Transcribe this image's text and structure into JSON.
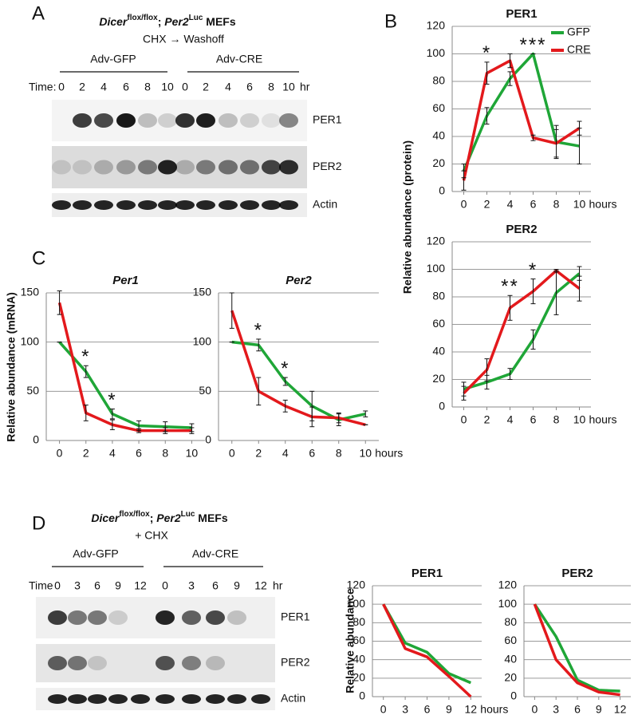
{
  "panels": [
    "A",
    "B",
    "C",
    "D"
  ],
  "panel_a": {
    "title": [
      "Dicer",
      "flox/flox",
      "; ",
      "Per2",
      "Luc",
      " MEFs"
    ],
    "treatment": "CHX → Washoff",
    "groups": [
      "Adv-GFP",
      "Adv-CRE"
    ],
    "time_label": "Time:",
    "times": [
      [
        0,
        2,
        4,
        6,
        8,
        10
      ],
      [
        0,
        2,
        4,
        6,
        8,
        10
      ]
    ],
    "time_unit": "hr",
    "blots": [
      "PER1",
      "PER2",
      "Actin"
    ]
  },
  "panel_d": {
    "title": [
      "Dicer",
      "flox/flox",
      "; ",
      "Per2",
      "Luc",
      " MEFs"
    ],
    "treatment": "+ CHX",
    "groups": [
      "Adv-GFP",
      "Adv-CRE"
    ],
    "time_label": "Time",
    "times": [
      [
        0,
        3,
        6,
        9,
        12
      ],
      [
        0,
        3,
        6,
        9,
        12
      ]
    ],
    "time_unit": "hr",
    "blots": [
      "PER1",
      "PER2",
      "Actin"
    ]
  },
  "chart_data": [
    {
      "type": "line",
      "title": "PER1",
      "ylabel": "Relative abundance (protein)",
      "xlabel": "hours",
      "x": [
        0,
        2,
        4,
        6,
        8,
        10
      ],
      "xlim": [
        -1,
        11
      ],
      "xticks": [
        0,
        2,
        4,
        6,
        8,
        10
      ],
      "ylim": [
        0,
        120
      ],
      "yticks": [
        0,
        20,
        40,
        60,
        80,
        100,
        120
      ],
      "grid": true,
      "legend": "upper right",
      "series": [
        {
          "name": "GFP",
          "color": "#1fa637",
          "values": [
            15,
            55,
            82,
            100,
            36,
            33
          ],
          "errors": [
            5,
            6,
            5,
            0,
            12,
            13
          ]
        },
        {
          "name": "CRE",
          "color": "#e3191c",
          "values": [
            8,
            86,
            95,
            39,
            35,
            46
          ],
          "errors": [
            7,
            8,
            5,
            2,
            10,
            5
          ]
        }
      ],
      "annotations": [
        {
          "text": "*",
          "x": 2
        },
        {
          "text": "***",
          "x": 6
        }
      ]
    },
    {
      "type": "line",
      "title": "PER2",
      "xlabel": "hours",
      "x": [
        0,
        2,
        4,
        6,
        8,
        10
      ],
      "xlim": [
        -1,
        11
      ],
      "xticks": [
        0,
        2,
        4,
        6,
        8,
        10
      ],
      "ylim": [
        0,
        120
      ],
      "yticks": [
        0,
        20,
        40,
        60,
        80,
        100,
        120
      ],
      "grid": true,
      "series": [
        {
          "color": "#1fa637",
          "values": [
            13,
            18,
            24,
            49,
            83,
            97
          ],
          "errors": [
            5,
            5,
            4,
            7,
            16,
            5
          ]
        },
        {
          "color": "#e3191c",
          "values": [
            10,
            27,
            72,
            84,
            99,
            86
          ],
          "errors": [
            5,
            8,
            9,
            9,
            1,
            9
          ]
        }
      ],
      "annotations": [
        {
          "text": "**",
          "x": 4
        },
        {
          "text": "*",
          "x": 6
        }
      ]
    },
    {
      "type": "line",
      "title": "Per1",
      "ylabel": "Relative abundance (mRNA)",
      "x": [
        0,
        2,
        4,
        6,
        8,
        10
      ],
      "xlim": [
        -1,
        11
      ],
      "xticks": [
        0,
        2,
        4,
        6,
        8,
        10
      ],
      "ylim": [
        0,
        150
      ],
      "yticks": [
        0,
        50,
        100,
        150
      ],
      "grid": true,
      "series": [
        {
          "color": "#1fa637",
          "values": [
            100,
            70,
            27,
            15,
            14,
            13
          ],
          "errors": [
            0,
            6,
            5,
            5,
            5,
            4
          ]
        },
        {
          "color": "#e3191c",
          "values": [
            140,
            28,
            16,
            10,
            10,
            10
          ],
          "errors": [
            12,
            8,
            5,
            2,
            3,
            3
          ]
        }
      ],
      "annotations": [
        {
          "text": "*",
          "x": 2
        },
        {
          "text": "*",
          "x": 4
        }
      ]
    },
    {
      "type": "line",
      "title": "Per2",
      "xlabel": "hours",
      "x": [
        0,
        2,
        4,
        6,
        8,
        10
      ],
      "xlim": [
        -1,
        11
      ],
      "xticks": [
        0,
        2,
        4,
        6,
        8,
        10
      ],
      "ylim": [
        0,
        150
      ],
      "yticks": [
        0,
        50,
        100,
        150
      ],
      "grid": true,
      "series": [
        {
          "color": "#1fa637",
          "values": [
            100,
            97,
            60,
            35,
            21,
            27
          ],
          "errors": [
            0,
            6,
            4,
            15,
            6,
            3
          ]
        },
        {
          "color": "#e3191c",
          "values": [
            132,
            50,
            35,
            24,
            23,
            16
          ],
          "errors": [
            18,
            14,
            6,
            10,
            5,
            0
          ]
        }
      ],
      "annotations": [
        {
          "text": "*",
          "x": 2
        },
        {
          "text": "*",
          "x": 4
        }
      ]
    },
    {
      "type": "line",
      "title": "PER1",
      "ylabel": "Relative abundance",
      "xlabel": "hours",
      "x": [
        0,
        3,
        6,
        9,
        12
      ],
      "xlim": [
        -1.5,
        13.5
      ],
      "xticks": [
        0,
        3,
        6,
        9,
        12
      ],
      "ylim": [
        0,
        120
      ],
      "yticks": [
        0,
        20,
        40,
        60,
        80,
        100,
        120
      ],
      "grid": true,
      "series": [
        {
          "color": "#1fa637",
          "values": [
            100,
            58,
            48,
            25,
            15
          ]
        },
        {
          "color": "#e3191c",
          "values": [
            100,
            52,
            43,
            22,
            0
          ]
        }
      ]
    },
    {
      "type": "line",
      "title": "PER2",
      "x": [
        0,
        3,
        6,
        9,
        12
      ],
      "xlim": [
        -1.5,
        13.5
      ],
      "xticks": [
        0,
        3,
        6,
        9,
        12
      ],
      "ylim": [
        0,
        120
      ],
      "yticks": [
        0,
        20,
        40,
        60,
        80,
        100,
        120
      ],
      "grid": true,
      "series": [
        {
          "color": "#1fa637",
          "values": [
            100,
            65,
            18,
            7,
            6
          ]
        },
        {
          "color": "#e3191c",
          "values": [
            100,
            40,
            15,
            5,
            2
          ]
        }
      ]
    }
  ]
}
